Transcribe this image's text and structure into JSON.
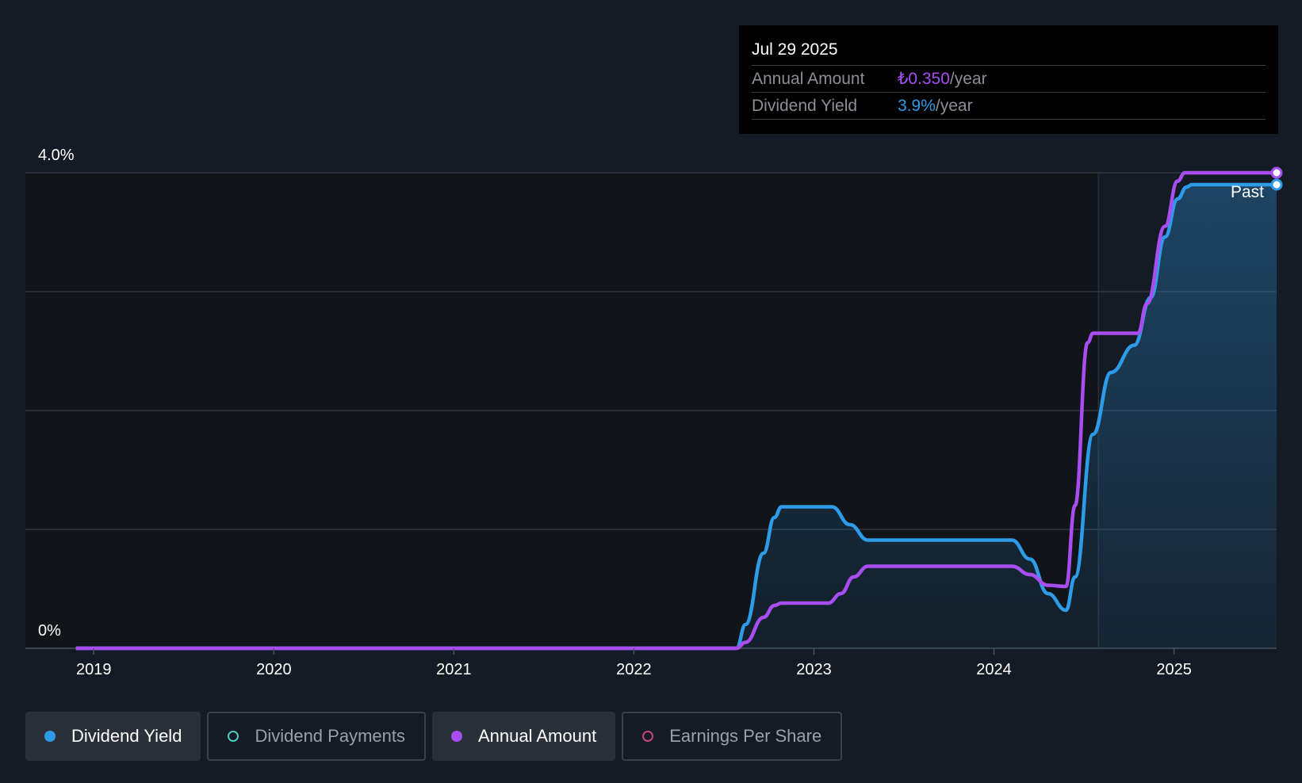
{
  "tooltip": {
    "date": "Jul 29 2025",
    "annual_label": "Annual Amount",
    "annual_value": "₺0.350",
    "annual_unit": "/year",
    "yield_label": "Dividend Yield",
    "yield_value": "3.9%",
    "yield_unit": "/year"
  },
  "past_label": "Past",
  "legend": [
    {
      "label": "Dividend Yield",
      "active": true,
      "color": "#2e9be8",
      "filled": true
    },
    {
      "label": "Dividend Payments",
      "active": false,
      "color": "#4fc8c0",
      "filled": false
    },
    {
      "label": "Annual Amount",
      "active": true,
      "color": "#a84ef0",
      "filled": true
    },
    {
      "label": "Earnings Per Share",
      "active": false,
      "color": "#c4457a",
      "filled": false
    }
  ],
  "colors": {
    "yield": "#2e9be8",
    "annual": "#a84ef0",
    "grid": "#2f3540",
    "text": "#ffffff",
    "background": "#151b24",
    "past_region": "#111419"
  },
  "chart_data": {
    "type": "line",
    "y_tick_labels": [
      "4.0%",
      "0%"
    ],
    "ylim": [
      0,
      4.0
    ],
    "x_tick_labels": [
      "2019",
      "2020",
      "2021",
      "2022",
      "2023",
      "2024",
      "2025"
    ],
    "x_tick_values": [
      2019.0,
      2020.0,
      2021.0,
      2022.0,
      2023.0,
      2024.0,
      2025.0
    ],
    "xlim": [
      2018.62,
      2025.57
    ],
    "past_start": 2024.58,
    "grid": true,
    "series": [
      {
        "name": "Dividend Yield",
        "unit": "%",
        "points": [
          [
            2018.9,
            0
          ],
          [
            2022.57,
            0
          ],
          [
            2022.62,
            0.2
          ],
          [
            2022.72,
            0.8
          ],
          [
            2022.78,
            1.1
          ],
          [
            2022.82,
            1.19
          ],
          [
            2023.1,
            1.19
          ],
          [
            2023.2,
            1.04
          ],
          [
            2023.3,
            0.91
          ],
          [
            2024.1,
            0.91
          ],
          [
            2024.2,
            0.75
          ],
          [
            2024.3,
            0.46
          ],
          [
            2024.4,
            0.32
          ],
          [
            2024.45,
            0.6
          ],
          [
            2024.55,
            1.8
          ],
          [
            2024.65,
            2.32
          ],
          [
            2024.78,
            2.55
          ],
          [
            2024.87,
            2.95
          ],
          [
            2024.95,
            3.46
          ],
          [
            2025.02,
            3.78
          ],
          [
            2025.07,
            3.88
          ],
          [
            2025.1,
            3.9
          ],
          [
            2025.57,
            3.9
          ]
        ]
      },
      {
        "name": "Annual Amount",
        "unit": "%-equivalent",
        "points": [
          [
            2018.9,
            0
          ],
          [
            2022.57,
            0
          ],
          [
            2022.62,
            0.05
          ],
          [
            2022.72,
            0.26
          ],
          [
            2022.78,
            0.36
          ],
          [
            2022.82,
            0.38
          ],
          [
            2023.08,
            0.38
          ],
          [
            2023.15,
            0.46
          ],
          [
            2023.22,
            0.6
          ],
          [
            2023.3,
            0.69
          ],
          [
            2024.1,
            0.69
          ],
          [
            2024.2,
            0.62
          ],
          [
            2024.3,
            0.53
          ],
          [
            2024.4,
            0.52
          ],
          [
            2024.45,
            1.2
          ],
          [
            2024.52,
            2.57
          ],
          [
            2024.55,
            2.65
          ],
          [
            2024.8,
            2.65
          ],
          [
            2024.85,
            2.9
          ],
          [
            2024.95,
            3.55
          ],
          [
            2025.02,
            3.93
          ],
          [
            2025.06,
            4.0
          ],
          [
            2025.57,
            4.0
          ]
        ]
      }
    ]
  }
}
